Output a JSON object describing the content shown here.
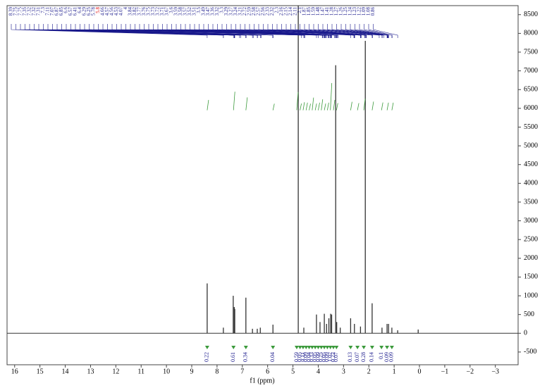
{
  "chart_data": {
    "type": "nmr",
    "x_label": "f1 (ppm)",
    "xlim": [
      16.3,
      -3.9
    ],
    "ylim": [
      -840,
      8740
    ],
    "xticks": [
      16,
      15,
      14,
      13,
      12,
      11,
      10,
      9,
      8,
      7,
      6,
      5,
      4,
      3,
      2,
      1,
      0,
      {
        "value": -1,
        "label": "−1"
      },
      {
        "value": -2,
        "label": "−2"
      },
      {
        "value": -3,
        "label": "−3"
      }
    ],
    "yticks": [
      8500,
      8000,
      7500,
      7000,
      6500,
      6000,
      5500,
      5000,
      4500,
      4000,
      3500,
      3000,
      2500,
      2000,
      1500,
      1000,
      500,
      0,
      {
        "value": -500,
        "label": "-500"
      }
    ],
    "color": "#333333",
    "peaks": {
      "x": [
        8.39,
        7.75,
        7.36,
        7.32,
        7.3,
        6.86,
        6.6,
        6.41,
        6.29,
        5.79,
        4.79,
        4.57,
        4.07,
        3.93,
        3.76,
        3.67,
        3.58,
        3.51,
        3.47,
        3.31,
        3.27,
        3.13,
        2.72,
        2.57,
        2.33,
        2.14,
        1.87,
        1.48,
        1.28,
        1.22,
        1.09,
        0.86,
        0.05
      ],
      "values": [
        1330,
        150,
        1000,
        700,
        650,
        950,
        120,
        120,
        150,
        230,
        8740,
        150,
        500,
        300,
        520,
        250,
        400,
        520,
        500,
        7150,
        300,
        150,
        400,
        250,
        180,
        7800,
        800,
        150,
        250,
        250,
        150,
        80,
        100
      ]
    },
    "peak_labels": [
      8.39,
      7.75,
      7.75,
      7.35,
      7.32,
      7.32,
      7.31,
      7.3,
      7.11,
      7.07,
      6.87,
      6.85,
      6.6,
      6.57,
      6.41,
      6.4,
      6.29,
      6.25,
      5.78,
      5.8,
      4.66,
      4.57,
      4.56,
      4.53,
      4.07,
      4.0,
      3.84,
      3.82,
      3.77,
      3.76,
      3.75,
      3.73,
      3.72,
      3.71,
      3.67,
      3.6,
      3.59,
      3.58,
      3.57,
      3.52,
      3.51,
      3.5,
      3.49,
      3.47,
      3.36,
      3.32,
      3.3,
      3.29,
      3.27,
      3.24,
      3.21,
      2.72,
      2.59,
      2.58,
      2.57,
      2.56,
      2.33,
      2.32,
      2.3,
      2.16,
      2.15,
      2.14,
      2.11,
      2.1,
      1.87,
      1.85,
      1.59,
      1.48,
      1.47,
      1.41,
      1.28,
      1.27,
      1.26,
      1.25,
      1.24,
      1.23,
      1.22,
      1.09,
      1.08,
      0.86
    ],
    "integrals": {
      "x": [
        8.39,
        7.35,
        6.86,
        5.79,
        4.85,
        4.72,
        4.6,
        4.48,
        4.36,
        4.24,
        4.12,
        4.0,
        3.88,
        3.76,
        3.64,
        3.52,
        3.4,
        3.28,
        2.72,
        2.45,
        2.2,
        1.87,
        1.5,
        1.28,
        1.09
      ],
      "values": [
        0.22,
        0.61,
        0.34,
        0.04,
        0.59,
        0.05,
        0.11,
        0.09,
        0.04,
        0.33,
        0.05,
        0.09,
        0.25,
        0.05,
        0.09,
        1.02,
        0.22,
        0.07,
        0.13,
        0.07,
        0.28,
        0.14,
        0.1,
        0.09,
        0.09
      ],
      "color": "#3c9a3c"
    }
  }
}
